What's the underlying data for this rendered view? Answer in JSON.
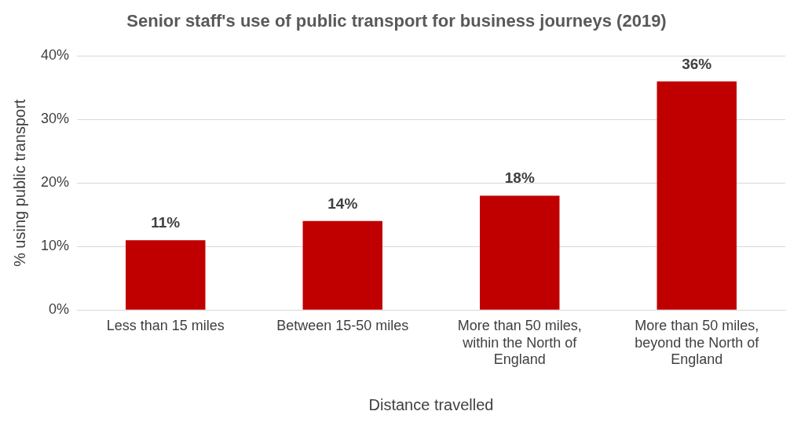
{
  "chart_data": {
    "type": "bar",
    "title": "Senior staff's use of public transport for business journeys (2019)",
    "xlabel": "Distance travelled",
    "ylabel": "% using public transport",
    "categories": [
      "Less than 15 miles",
      "Between 15-50 miles",
      "More than 50 miles, within the North of England",
      "More than 50 miles, beyond the North of England"
    ],
    "values": [
      11,
      14,
      18,
      36
    ],
    "color": "#c00000",
    "value_labels": [
      "11%",
      "14%",
      "18%",
      "36%"
    ],
    "ylim": [
      0,
      40
    ],
    "yticks": [
      {
        "value": 0,
        "label": "0%"
      },
      {
        "value": 10,
        "label": "10%"
      },
      {
        "value": 20,
        "label": "20%"
      },
      {
        "value": 30,
        "label": "30%"
      },
      {
        "value": 40,
        "label": "40%"
      }
    ],
    "grid": "y",
    "legend": false
  }
}
